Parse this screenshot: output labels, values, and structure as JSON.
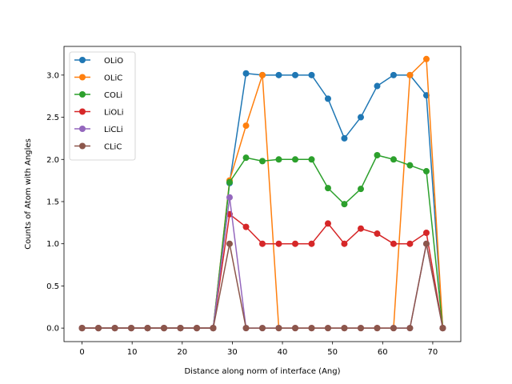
{
  "chart_data": {
    "type": "line",
    "title": "",
    "xlabel": "Distance along norm of interface (Ang)",
    "ylabel": "Counts of Atom with Angles",
    "xlim": [
      -3.6,
      75.6
    ],
    "ylim": [
      -0.16,
      3.34
    ],
    "xticks": [
      0,
      10,
      20,
      30,
      40,
      50,
      60,
      70
    ],
    "yticks": [
      0.0,
      0.5,
      1.0,
      1.5,
      2.0,
      2.5,
      3.0
    ],
    "ytick_labels": [
      "0.0",
      "0.5",
      "1.0",
      "1.5",
      "2.0",
      "2.5",
      "3.0"
    ],
    "grid": false,
    "legend_position": "upper-left",
    "x": [
      0,
      3.27,
      6.55,
      9.82,
      13.09,
      16.36,
      19.64,
      22.91,
      26.18,
      29.45,
      32.73,
      36.0,
      39.27,
      42.55,
      45.82,
      49.09,
      52.36,
      55.64,
      58.91,
      62.18,
      65.45,
      68.73,
      72.0
    ],
    "series": [
      {
        "name": "OLiO",
        "color": "#1f77b4",
        "values": [
          0,
          0,
          0,
          0,
          0,
          0,
          0,
          0,
          0,
          1.72,
          3.02,
          3.0,
          3.0,
          3.0,
          3.0,
          2.72,
          2.25,
          2.5,
          2.87,
          3.0,
          3.0,
          2.76,
          0
        ]
      },
      {
        "name": "OLiC",
        "color": "#ff7f0e",
        "values": [
          0,
          0,
          0,
          0,
          0,
          0,
          0,
          0,
          0,
          1.75,
          2.4,
          3.0,
          0,
          0,
          0,
          0,
          0,
          0,
          0,
          0,
          3.0,
          3.19,
          0
        ]
      },
      {
        "name": "COLi",
        "color": "#2ca02c",
        "values": [
          0,
          0,
          0,
          0,
          0,
          0,
          0,
          0,
          0,
          1.73,
          2.02,
          1.98,
          2.0,
          2.0,
          2.0,
          1.66,
          1.47,
          1.65,
          2.05,
          2.0,
          1.93,
          1.86,
          0
        ]
      },
      {
        "name": "LiOLi",
        "color": "#d62728",
        "values": [
          0,
          0,
          0,
          0,
          0,
          0,
          0,
          0,
          0,
          1.35,
          1.2,
          1.0,
          1.0,
          1.0,
          1.0,
          1.24,
          1.0,
          1.18,
          1.12,
          1.0,
          1.0,
          1.13,
          0
        ]
      },
      {
        "name": "LiCLi",
        "color": "#9467bd",
        "values": [
          0,
          0,
          0,
          0,
          0,
          0,
          0,
          0,
          0,
          1.55,
          0,
          0,
          0,
          0,
          0,
          0,
          0,
          0,
          0,
          0,
          0,
          1.0,
          0
        ]
      },
      {
        "name": "CLiC",
        "color": "#8c564b",
        "values": [
          0,
          0,
          0,
          0,
          0,
          0,
          0,
          0,
          0,
          1.0,
          0,
          0,
          0,
          0,
          0,
          0,
          0,
          0,
          0,
          0,
          0,
          1.0,
          0
        ]
      }
    ]
  }
}
